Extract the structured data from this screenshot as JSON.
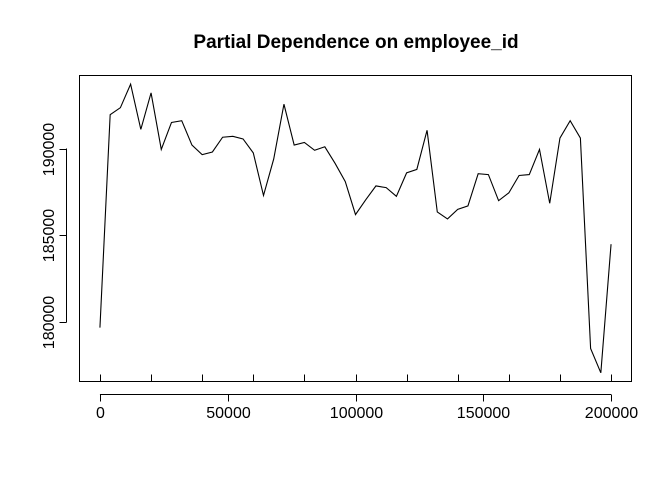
{
  "chart_data": {
    "type": "line",
    "title": "Partial Dependence on employee_id",
    "xlabel": "",
    "ylabel": "",
    "xlim": [
      -8000,
      208000
    ],
    "ylim": [
      176600,
      194200
    ],
    "x_ticks": [
      0,
      50000,
      100000,
      150000,
      200000
    ],
    "x_tick_labels": [
      "0",
      "50000",
      "100000",
      "150000",
      "200000"
    ],
    "x_minor_ticks": [
      0,
      20000,
      40000,
      60000,
      80000,
      100000,
      120000,
      140000,
      160000,
      180000,
      200000
    ],
    "y_ticks": [
      180000,
      185000,
      190000
    ],
    "y_tick_labels": [
      "180000",
      "185000",
      "190000"
    ],
    "grid": false,
    "line_color": "#000000",
    "series": [
      {
        "x": [
          0,
          4000,
          8000,
          12000,
          16000,
          20000,
          24000,
          28000,
          32000,
          36000,
          40000,
          44000,
          48000,
          52000,
          56000,
          60000,
          64000,
          68000,
          72000,
          76000,
          80000,
          84000,
          88000,
          92000,
          96000,
          100000,
          104000,
          108000,
          112000,
          116000,
          120000,
          124000,
          128000,
          132000,
          136000,
          140000,
          144000,
          148000,
          152000,
          156000,
          160000,
          164000,
          168000,
          172000,
          176000,
          180000,
          184000,
          188000,
          192000,
          196000,
          200000
        ],
        "y": [
          179700,
          191950,
          192350,
          193700,
          191100,
          193200,
          189950,
          191500,
          191600,
          190200,
          189650,
          189800,
          190650,
          190700,
          190550,
          189750,
          187300,
          189400,
          192550,
          190200,
          190350,
          189900,
          190100,
          189150,
          188100,
          186200,
          187050,
          187850,
          187750,
          187250,
          188600,
          188800,
          191050,
          186350,
          185950,
          186500,
          186700,
          188550,
          188500,
          187000,
          187450,
          188450,
          188500,
          189950,
          186850,
          190600,
          191600,
          190600,
          178500,
          177100,
          184500
        ]
      }
    ]
  }
}
